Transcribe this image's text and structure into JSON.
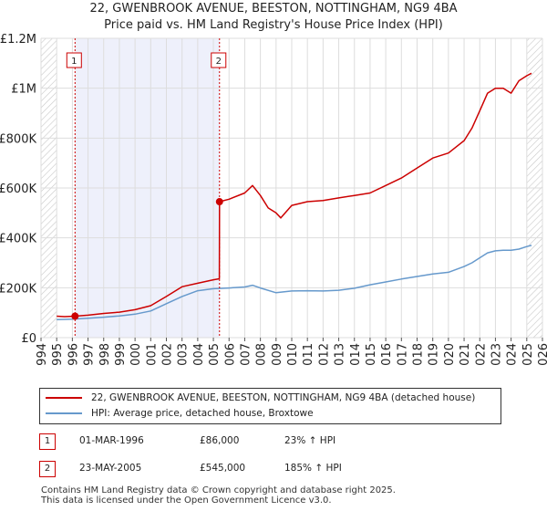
{
  "chart_data": {
    "type": "line",
    "title": "22, GWENBROOK AVENUE, BEESTON, NOTTINGHAM, NG9 4BA",
    "subtitle": "Price paid vs. HM Land Registry's House Price Index (HPI)",
    "xlim": [
      1994,
      2026
    ],
    "ylim": [
      0,
      1200000
    ],
    "x_ticks": [
      "1994",
      "1995",
      "1996",
      "1997",
      "1998",
      "1999",
      "2000",
      "2001",
      "2002",
      "2003",
      "2004",
      "2005",
      "2006",
      "2007",
      "2008",
      "2009",
      "2010",
      "2011",
      "2012",
      "2013",
      "2014",
      "2015",
      "2016",
      "2017",
      "2018",
      "2019",
      "2020",
      "2021",
      "2022",
      "2023",
      "2024",
      "2025",
      "2026"
    ],
    "y_ticks": [
      {
        "value": 0,
        "label": "£0"
      },
      {
        "value": 200000,
        "label": "£200K"
      },
      {
        "value": 400000,
        "label": "£400K"
      },
      {
        "value": 600000,
        "label": "£600K"
      },
      {
        "value": 800000,
        "label": "£800K"
      },
      {
        "value": 1000000,
        "label": "£1M"
      },
      {
        "value": 1200000,
        "label": "£1.2M"
      }
    ],
    "grid": true,
    "series": [
      {
        "name": "22, GWENBROOK AVENUE, BEESTON, NOTTINGHAM, NG9 4BA (detached house)",
        "color": "#cc0000",
        "x": [
          1995.0,
          1995.5,
          1996.17,
          1997,
          1998,
          1999,
          2000,
          2001,
          2002,
          2003,
          2004,
          2005.0,
          2005.38,
          2005.39,
          2006,
          2007,
          2007.5,
          2008,
          2008.5,
          2009,
          2009.3,
          2010,
          2011,
          2012,
          2013,
          2014,
          2015,
          2016,
          2017,
          2018,
          2019,
          2020,
          2021,
          2021.5,
          2022,
          2022.5,
          2023,
          2023.5,
          2024,
          2024.5,
          2025,
          2025.3
        ],
        "y": [
          86000,
          84000,
          86000,
          90000,
          97000,
          102000,
          112000,
          128000,
          165000,
          204000,
          218000,
          232000,
          236000,
          545000,
          555000,
          580000,
          610000,
          570000,
          520000,
          500000,
          480000,
          530000,
          545000,
          550000,
          560000,
          570000,
          580000,
          610000,
          640000,
          680000,
          720000,
          740000,
          790000,
          840000,
          910000,
          980000,
          1000000,
          1000000,
          980000,
          1030000,
          1050000,
          1060000
        ]
      },
      {
        "name": "HPI: Average price, detached house, Broxtowe",
        "color": "#6699cc",
        "x": [
          1995.0,
          1996,
          1997,
          1998,
          1999,
          2000,
          2001,
          2002,
          2003,
          2004,
          2005,
          2006,
          2007,
          2007.5,
          2008,
          2009,
          2010,
          2011,
          2012,
          2013,
          2014,
          2015,
          2016,
          2017,
          2018,
          2019,
          2020,
          2021,
          2021.5,
          2022,
          2022.5,
          2023,
          2023.5,
          2024,
          2024.5,
          2025,
          2025.3
        ],
        "y": [
          72000,
          74000,
          78000,
          82000,
          87000,
          94000,
          107000,
          136000,
          165000,
          188000,
          196000,
          199000,
          203000,
          210000,
          199000,
          180000,
          187000,
          188000,
          187000,
          190000,
          198000,
          212000,
          223000,
          235000,
          245000,
          255000,
          262000,
          285000,
          300000,
          320000,
          340000,
          348000,
          350000,
          350000,
          355000,
          365000,
          370000
        ]
      }
    ],
    "sales": [
      {
        "label": "1",
        "x": 1996.17,
        "y": 86000,
        "date": "01-MAR-1996",
        "price": "£86,000",
        "hpi": "23% ↑ HPI"
      },
      {
        "label": "2",
        "x": 2005.39,
        "y": 545000,
        "date": "23-MAY-2005",
        "price": "£545,000",
        "hpi": "185% ↑ HPI"
      }
    ],
    "shaded_range": [
      1996.17,
      2005.39
    ],
    "hatched_before": 1995.0,
    "hatched_after": 2025.0
  },
  "legend": {
    "property": "22, GWENBROOK AVENUE, BEESTON, NOTTINGHAM, NG9 4BA (detached house)",
    "hpi": "HPI: Average price, detached house, Broxtowe"
  },
  "footer": {
    "line1": "Contains HM Land Registry data © Crown copyright and database right 2025.",
    "line2": "This data is licensed under the Open Government Licence v3.0."
  }
}
